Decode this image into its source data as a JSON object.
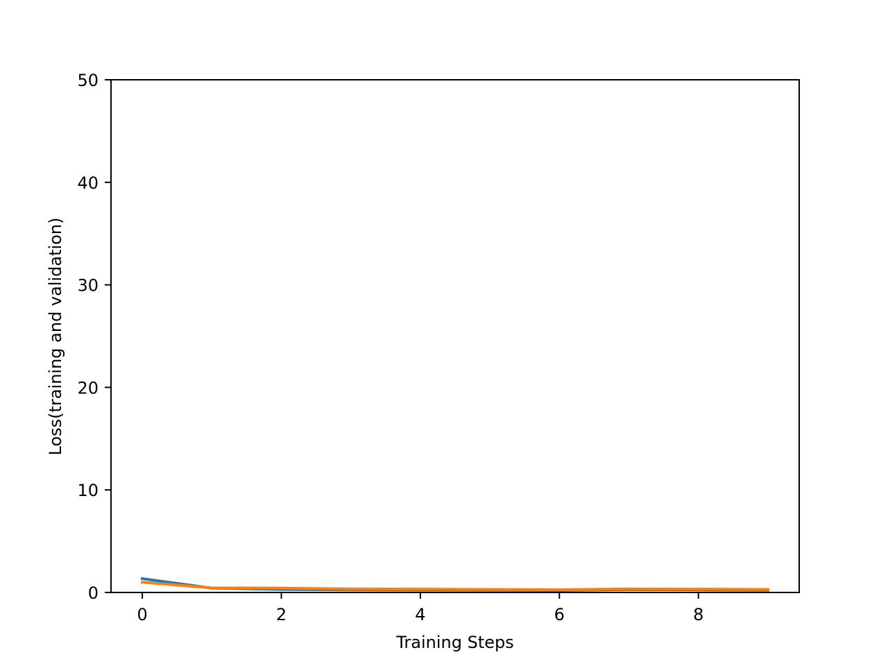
{
  "chart_data": {
    "type": "line",
    "title": "",
    "xlabel": "Training Steps",
    "ylabel": "Loss(training and validation)",
    "xlim": [
      -0.45,
      9.45
    ],
    "ylim": [
      0,
      50
    ],
    "x_ticks": [
      0,
      2,
      4,
      6,
      8
    ],
    "y_ticks": [
      0,
      10,
      20,
      30,
      40,
      50
    ],
    "grid": false,
    "x": [
      0,
      1,
      2,
      3,
      4,
      5,
      6,
      7,
      8,
      9
    ],
    "series": [
      {
        "color": "#1f77b4",
        "values": [
          1.35,
          0.42,
          0.3,
          0.25,
          0.24,
          0.22,
          0.2,
          0.27,
          0.25,
          0.22
        ]
      },
      {
        "color": "#ff7f0e",
        "values": [
          1.0,
          0.45,
          0.42,
          0.35,
          0.33,
          0.3,
          0.26,
          0.35,
          0.33,
          0.3
        ]
      }
    ]
  }
}
